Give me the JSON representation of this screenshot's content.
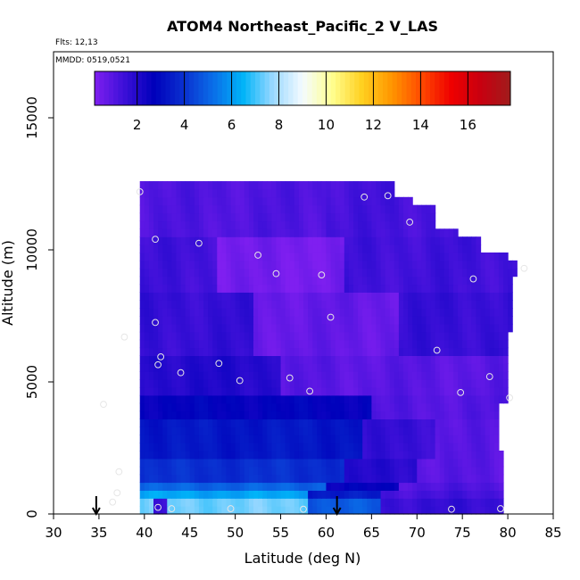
{
  "chart_data": {
    "type": "heatmap",
    "title": "ATOM4 Northeast_Pacific_2 V_LAS",
    "annotations": [
      "Flts: 12,13",
      "MMDD: 0519,0521"
    ],
    "xlabel": "Latitude (deg N)",
    "ylabel": "Altitude (m)",
    "xlim": [
      30,
      85
    ],
    "ylim": [
      0,
      17500
    ],
    "x_ticks": [
      30,
      35,
      40,
      45,
      50,
      55,
      60,
      65,
      70,
      75,
      80,
      85
    ],
    "y_ticks": [
      0,
      5000,
      10000,
      15000
    ],
    "colorbar": {
      "range": [
        0.2,
        17.8
      ],
      "ticks": [
        2,
        4,
        6,
        8,
        10,
        12,
        14,
        16
      ],
      "colors": [
        "#7f1ff0",
        "#3c10d8",
        "#0000bb",
        "#0a30d0",
        "#0a6ee8",
        "#00b4f8",
        "#9ad8ff",
        "#f4fbff",
        "#ffff90",
        "#ffd020",
        "#ff9600",
        "#ff4a00",
        "#ef0000",
        "#c80010",
        "#a01c1c"
      ]
    },
    "grid": false,
    "arrows_at_latitude": [
      34.7,
      61.2
    ],
    "sample_points": [
      {
        "x": 39.5,
        "y": 12200
      },
      {
        "x": 64.2,
        "y": 12000
      },
      {
        "x": 66.8,
        "y": 12050
      },
      {
        "x": 69.2,
        "y": 11050
      },
      {
        "x": 41.2,
        "y": 10400
      },
      {
        "x": 46,
        "y": 10250
      },
      {
        "x": 52.5,
        "y": 9800
      },
      {
        "x": 54.5,
        "y": 9100
      },
      {
        "x": 59.5,
        "y": 9050
      },
      {
        "x": 76.2,
        "y": 8900
      },
      {
        "x": 81.8,
        "y": 9300
      },
      {
        "x": 60.5,
        "y": 7450
      },
      {
        "x": 41.2,
        "y": 7250
      },
      {
        "x": 37.8,
        "y": 6700
      },
      {
        "x": 72.2,
        "y": 6200
      },
      {
        "x": 41.8,
        "y": 5950
      },
      {
        "x": 41.5,
        "y": 5650
      },
      {
        "x": 48.2,
        "y": 5700
      },
      {
        "x": 44,
        "y": 5350
      },
      {
        "x": 50.5,
        "y": 5050
      },
      {
        "x": 56,
        "y": 5150
      },
      {
        "x": 78,
        "y": 5200
      },
      {
        "x": 58.2,
        "y": 4650
      },
      {
        "x": 74.8,
        "y": 4600
      },
      {
        "x": 80.2,
        "y": 4400
      },
      {
        "x": 35.5,
        "y": 4150
      },
      {
        "x": 37.2,
        "y": 1600
      },
      {
        "x": 37,
        "y": 800
      },
      {
        "x": 36.5,
        "y": 450
      },
      {
        "x": 41.5,
        "y": 250
      },
      {
        "x": 43,
        "y": 200
      },
      {
        "x": 49.5,
        "y": 200
      },
      {
        "x": 57.5,
        "y": 180
      },
      {
        "x": 73.8,
        "y": 180
      },
      {
        "x": 79.2,
        "y": 200
      }
    ]
  }
}
